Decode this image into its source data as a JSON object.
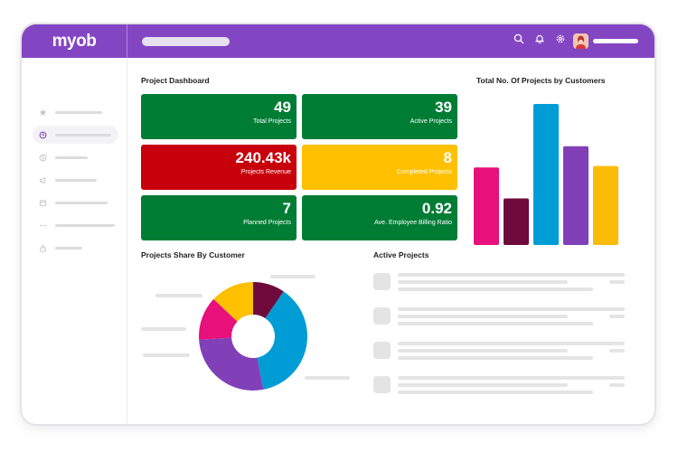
{
  "app": {
    "logo": "myob"
  },
  "colors": {
    "purple": "#8346c3",
    "green": "#007d35",
    "red": "#c8000b",
    "yellow": "#ffc000",
    "pink": "#e8107b",
    "maroon": "#6f0b3c",
    "blue": "#009cd6",
    "violet": "#8140b8",
    "amber": "#fbbc09"
  },
  "topbar": {
    "icons": [
      "search-icon",
      "bell-icon",
      "gear-icon"
    ]
  },
  "sidebar": {
    "icons": [
      "star-icon",
      "clock-icon",
      "dollar-icon",
      "megaphone-icon",
      "calendar-icon",
      "more-icon",
      "lock-icon"
    ]
  },
  "dashboard": {
    "title": "Project Dashboard",
    "stats": [
      {
        "value": "49",
        "label": "Total Projects"
      },
      {
        "value": "39",
        "label": "Active Projects"
      },
      {
        "value": "240.43k",
        "label": "Projects Revenue"
      },
      {
        "value": "8",
        "label": "Completed Projects"
      },
      {
        "value": "7",
        "label": "Planned Projects"
      },
      {
        "value": "0.92",
        "label": "Ave. Employee Billing Ratio"
      }
    ]
  },
  "bar_title": "Total No. Of Projects by Customers",
  "share_title": "Projects Share By Customer",
  "active_title": "Active Projects",
  "chart_data": [
    {
      "type": "bar",
      "title": "Total No. Of Projects by Customers",
      "categories": [
        "",
        "",
        "",
        "",
        ""
      ],
      "values": [
        55,
        33,
        100,
        70,
        56
      ],
      "colors": [
        "#e8107b",
        "#6f0b3c",
        "#009cd6",
        "#8140b8",
        "#fbbc09"
      ],
      "ylim": [
        0,
        100
      ],
      "grid": false
    },
    {
      "type": "pie",
      "title": "Projects Share By Customer",
      "labels": [
        "",
        "",
        "",
        "",
        ""
      ],
      "values": [
        9.5,
        37.5,
        27,
        13,
        13
      ],
      "colors": [
        "#6f0b3c",
        "#009cd6",
        "#8140b8",
        "#e8107b",
        "#ffc000"
      ],
      "donut": true
    }
  ]
}
